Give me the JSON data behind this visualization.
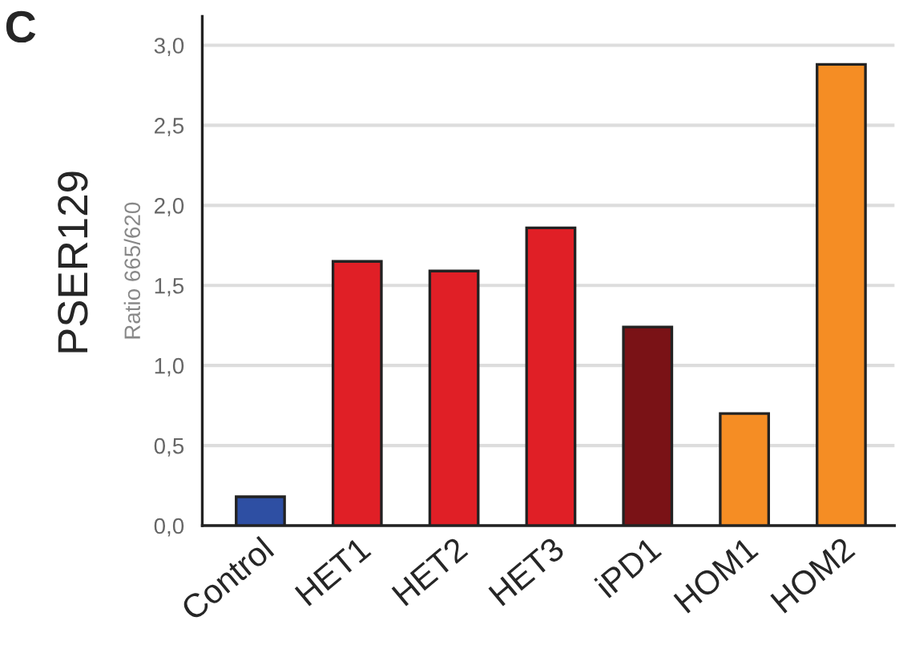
{
  "chart_data": {
    "type": "bar",
    "ylabel": "Ratio 665/620",
    "annotations": [
      "C",
      "PSER129"
    ],
    "categories": [
      "Control",
      "HET1",
      "HET2",
      "HET3",
      "iPD1",
      "HOM1",
      "HOM2"
    ],
    "values": [
      0.18,
      1.65,
      1.59,
      1.86,
      1.24,
      0.7,
      2.88
    ],
    "colors": [
      "#2e4fa3",
      "#e01f26",
      "#e01f26",
      "#e01f26",
      "#7a1216",
      "#f58d24",
      "#f58d24"
    ],
    "ylim": [
      0,
      3.18
    ],
    "yticks": [
      {
        "value": 0,
        "label": "0,0"
      },
      {
        "value": 0.5,
        "label": "0,5"
      },
      {
        "value": 1.0,
        "label": "1,0"
      },
      {
        "value": 1.5,
        "label": "1,5"
      },
      {
        "value": 2.0,
        "label": "2,0"
      },
      {
        "value": 2.5,
        "label": "2,5"
      },
      {
        "value": 3.0,
        "label": "3,0"
      }
    ],
    "grid": "y"
  }
}
